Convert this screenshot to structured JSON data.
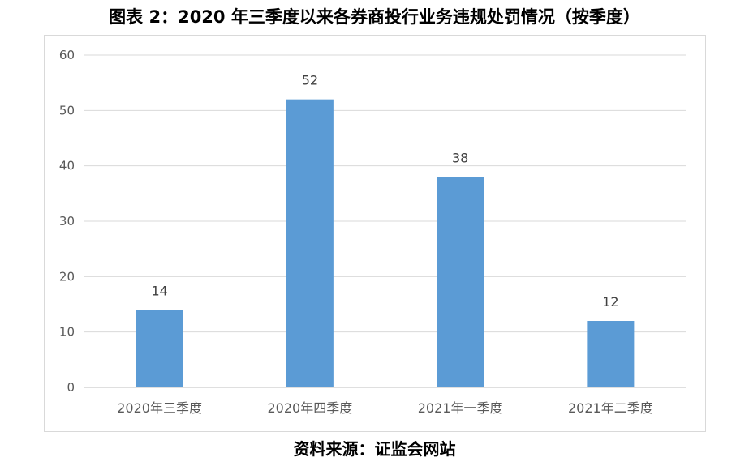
{
  "title": "图表 2：2020 年三季度以来各券商投行业务违规处罚情况（按季度）",
  "source": "资料来源：证监会网站",
  "chart_data": {
    "type": "bar",
    "categories": [
      "2020年三季度",
      "2020年四季度",
      "2021年一季度",
      "2021年二季度"
    ],
    "values": [
      14,
      52,
      38,
      12
    ],
    "title": "图表 2：2020 年三季度以来各券商投行业务违规处罚情况（按季度）",
    "xlabel": "",
    "ylabel": "",
    "ylim": [
      0,
      60
    ],
    "yticks": [
      0,
      10,
      20,
      30,
      40,
      50,
      60
    ],
    "grid": true,
    "legend": "none",
    "bar_color": "#5b9bd5",
    "data_labels": true
  }
}
